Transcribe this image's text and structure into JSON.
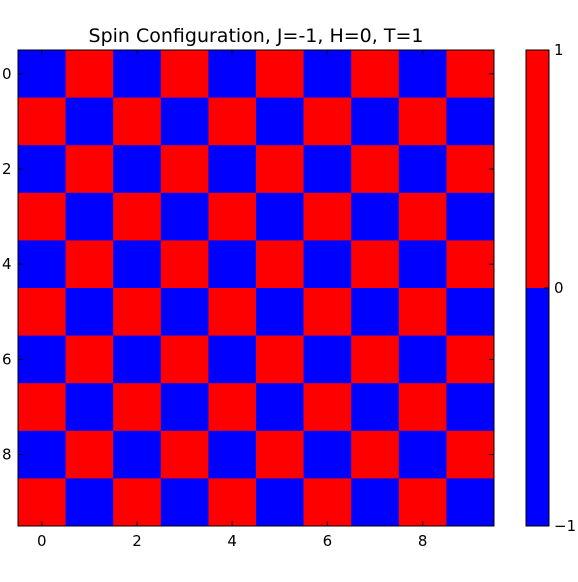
{
  "chart_data": {
    "type": "heatmap",
    "title": "Spin Configuration, J=-1, H=0, T=1",
    "rows": 10,
    "cols": 10,
    "values": [
      [
        -1,
        1,
        -1,
        1,
        -1,
        1,
        -1,
        1,
        -1,
        1
      ],
      [
        1,
        -1,
        1,
        -1,
        1,
        -1,
        1,
        -1,
        1,
        -1
      ],
      [
        -1,
        1,
        -1,
        1,
        -1,
        1,
        -1,
        1,
        -1,
        1
      ],
      [
        1,
        -1,
        1,
        -1,
        1,
        -1,
        1,
        -1,
        1,
        -1
      ],
      [
        -1,
        1,
        -1,
        1,
        -1,
        1,
        -1,
        1,
        -1,
        1
      ],
      [
        1,
        -1,
        1,
        -1,
        1,
        -1,
        1,
        -1,
        1,
        -1
      ],
      [
        -1,
        1,
        -1,
        1,
        -1,
        1,
        -1,
        1,
        -1,
        1
      ],
      [
        1,
        -1,
        1,
        -1,
        1,
        -1,
        1,
        -1,
        1,
        -1
      ],
      [
        -1,
        1,
        -1,
        1,
        -1,
        1,
        -1,
        1,
        -1,
        1
      ],
      [
        1,
        -1,
        1,
        -1,
        1,
        -1,
        1,
        -1,
        1,
        -1
      ]
    ],
    "x_ticks": [
      0,
      2,
      4,
      6,
      8
    ],
    "y_ticks": [
      0,
      2,
      4,
      6,
      8
    ],
    "xlim": [
      -0.5,
      9.5
    ],
    "ylim": [
      9.5,
      -0.5
    ],
    "colormap": {
      "negative_color": "#0000ff",
      "positive_color": "#ff0000",
      "vmin": -1,
      "vmax": 1
    },
    "colorbar": {
      "ticks": [
        -1,
        0,
        1
      ],
      "tick_labels": [
        "−1",
        "0",
        "1"
      ],
      "placement": "right"
    }
  }
}
